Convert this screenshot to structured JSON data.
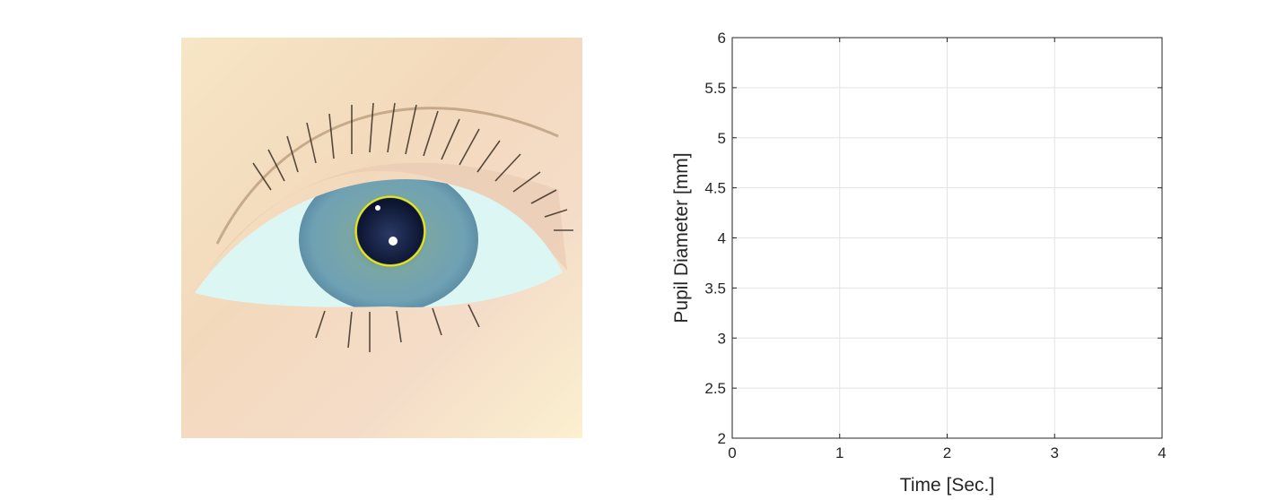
{
  "colors": {
    "detection_circle": "#f2e600",
    "axes": "#262626",
    "grid": "#e3e3e3"
  },
  "eye_image": {
    "description_icon": "eye-photo"
  },
  "chart_data": {
    "type": "line",
    "title": "",
    "xlabel": "Time [Sec.]",
    "ylabel": "Pupil Diameter [mm]",
    "xlim": [
      0,
      4
    ],
    "ylim": [
      2,
      6
    ],
    "xticks": [
      "0",
      "1",
      "2",
      "3",
      "4"
    ],
    "yticks": [
      "2",
      "2.5",
      "3",
      "3.5",
      "4",
      "4.5",
      "5",
      "5.5",
      "6"
    ],
    "grid": true,
    "box": true,
    "series": []
  }
}
